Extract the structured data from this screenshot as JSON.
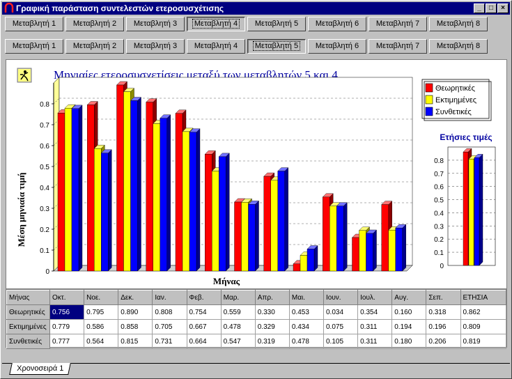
{
  "window": {
    "title": "Γραφική παράσταση συντελεστών ετεροσυσχέτισης"
  },
  "tabs_row1": [
    "Μεταβλητή 1",
    "Μεταβλητή 2",
    "Μεταβλητή 3",
    "Μεταβλητή 4",
    "Μεταβλητή 5",
    "Μεταβλητή 6",
    "Μεταβλητή 7",
    "Μεταβλητή 8"
  ],
  "tabs_row1_active": 3,
  "tabs_row2": [
    "Μεταβλητή 1",
    "Μεταβλητή 2",
    "Μεταβλητή 3",
    "Μεταβλητή 4",
    "Μεταβλητή 5",
    "Μεταβλητή 6",
    "Μεταβλητή 7",
    "Μεταβλητή 8"
  ],
  "tabs_row2_active": 4,
  "chart": {
    "title": "Μηνιαίες ετεροσυσχετίσεις μεταξύ των μεταβλητών 5 και 4",
    "xlabel": "Μήνας",
    "ylabel": "Μέση μηνιαία τιμή",
    "yticks": [
      "0",
      "0.1",
      "0.2",
      "0.3",
      "0.4",
      "0.5",
      "0.6",
      "0.7",
      "0.8"
    ],
    "annual_title": "Ετήσιες τιμές",
    "colors": {
      "theoretical": "#ff0000",
      "estimated": "#ffff00",
      "synthetic": "#0000ff"
    }
  },
  "chart_data": {
    "type": "bar",
    "categories": [
      "Οκτ.",
      "Νοε.",
      "Δεκ.",
      "Ιαν.",
      "Φεβ.",
      "Μαρ.",
      "Απρ.",
      "Μαι.",
      "Ιουν.",
      "Ιουλ.",
      "Αυγ.",
      "Σεπ."
    ],
    "series": [
      {
        "name": "Θεωρητικές",
        "values": [
          0.756,
          0.795,
          0.89,
          0.808,
          0.754,
          0.559,
          0.33,
          0.453,
          0.034,
          0.354,
          0.16,
          0.318
        ]
      },
      {
        "name": "Εκτιμημένες",
        "values": [
          0.779,
          0.586,
          0.858,
          0.705,
          0.667,
          0.478,
          0.329,
          0.434,
          0.075,
          0.311,
          0.194,
          0.196
        ]
      },
      {
        "name": "Συνθετικές",
        "values": [
          0.777,
          0.564,
          0.815,
          0.731,
          0.664,
          0.547,
          0.319,
          0.478,
          0.105,
          0.311,
          0.18,
          0.206
        ]
      }
    ],
    "annual": [
      0.862,
      0.809,
      0.819
    ],
    "ylim": [
      0,
      0.9
    ],
    "grid": true,
    "legend": "top-right"
  },
  "grid": {
    "corner": "Μήνας",
    "columns": [
      "Οκτ.",
      "Νοε.",
      "Δεκ.",
      "Ιαν.",
      "Φεβ.",
      "Μαρ.",
      "Απρ.",
      "Μαι.",
      "Ιουν.",
      "Ιουλ.",
      "Αυγ.",
      "Σεπ.",
      "ΕΤΗΣΙΑ"
    ],
    "rows": [
      {
        "label": "Θεωρητικές",
        "cells": [
          "0.756",
          "0.795",
          "0.890",
          "0.808",
          "0.754",
          "0.559",
          "0.330",
          "0.453",
          "0.034",
          "0.354",
          "0.160",
          "0.318",
          "0.862"
        ]
      },
      {
        "label": "Εκτιμημένες",
        "cells": [
          "0.779",
          "0.586",
          "0.858",
          "0.705",
          "0.667",
          "0.478",
          "0.329",
          "0.434",
          "0.075",
          "0.311",
          "0.194",
          "0.196",
          "0.809"
        ]
      },
      {
        "label": "Συνθετικές",
        "cells": [
          "0.777",
          "0.564",
          "0.815",
          "0.731",
          "0.664",
          "0.547",
          "0.319",
          "0.478",
          "0.105",
          "0.311",
          "0.180",
          "0.206",
          "0.819"
        ]
      }
    ]
  },
  "sheet_tab": "Χρονοσειρά 1"
}
